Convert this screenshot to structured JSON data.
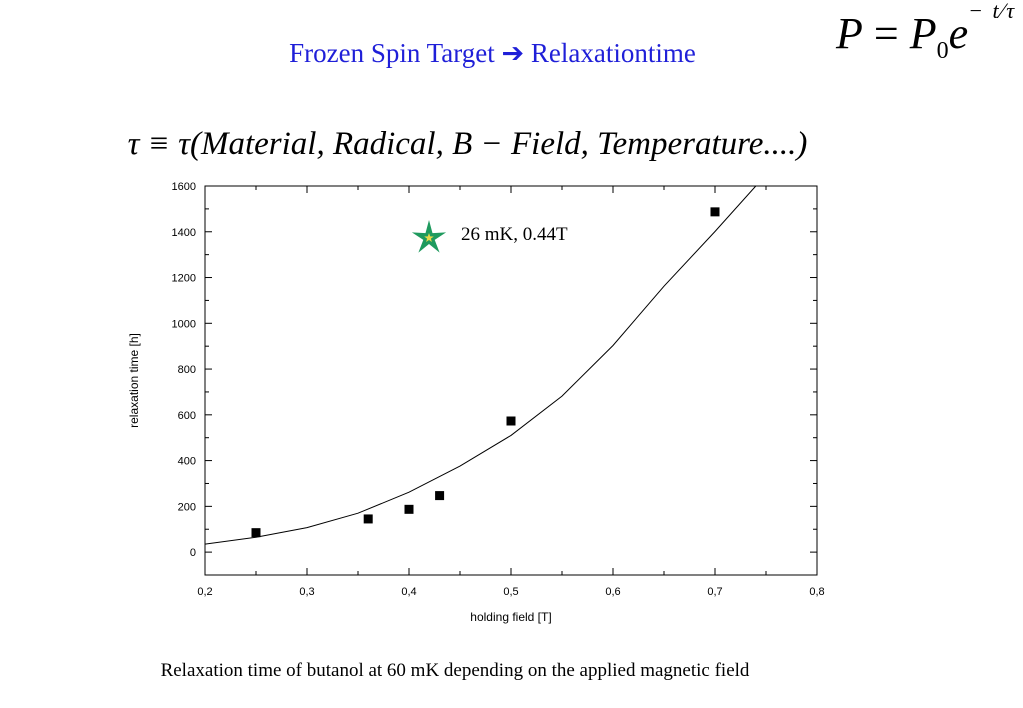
{
  "slide": {
    "title": "Frozen Spin Target ➔ Relaxationtime",
    "formula_decay": "P = P₀e^(−t/τ)",
    "formula_dependency": "τ ≡ τ(Material, Radical, B − Field, Temperature....)",
    "caption": "Relaxation time of butanol at 60 mK depending on the applied magnetic field"
  },
  "chart_data": {
    "type": "scatter",
    "title": "",
    "xlabel": "holding field [T]",
    "ylabel": "relaxation time [h]",
    "xlim": [
      0.2,
      0.8
    ],
    "ylim": [
      -100,
      1600
    ],
    "x_ticks": [
      "0,2",
      "0,3",
      "0,4",
      "0,5",
      "0,6",
      "0,7",
      "0,8"
    ],
    "y_ticks": [
      "0",
      "200",
      "400",
      "600",
      "800",
      "1000",
      "1200",
      "1400",
      "1600"
    ],
    "series": [
      {
        "marker": "square",
        "x": [
          0.25,
          0.36,
          0.4,
          0.43,
          0.5,
          0.7
        ],
        "y": [
          85,
          145,
          187,
          247,
          573,
          1487
        ]
      }
    ],
    "fit_curve": {
      "kind": "exponential",
      "x": [
        0.2,
        0.25,
        0.3,
        0.35,
        0.4,
        0.45,
        0.5,
        0.55,
        0.6,
        0.65,
        0.7,
        0.74
      ],
      "y": [
        35,
        65,
        107,
        170,
        262,
        376,
        510,
        682,
        903,
        1162,
        1401,
        1600
      ]
    },
    "annotation": {
      "text": "26 mK, 0.44T",
      "x": 0.42,
      "y": 1370,
      "marker": "star",
      "marker_color": "#1f9a5e",
      "marker_center_color": "#e8d84a"
    },
    "grid": false
  }
}
